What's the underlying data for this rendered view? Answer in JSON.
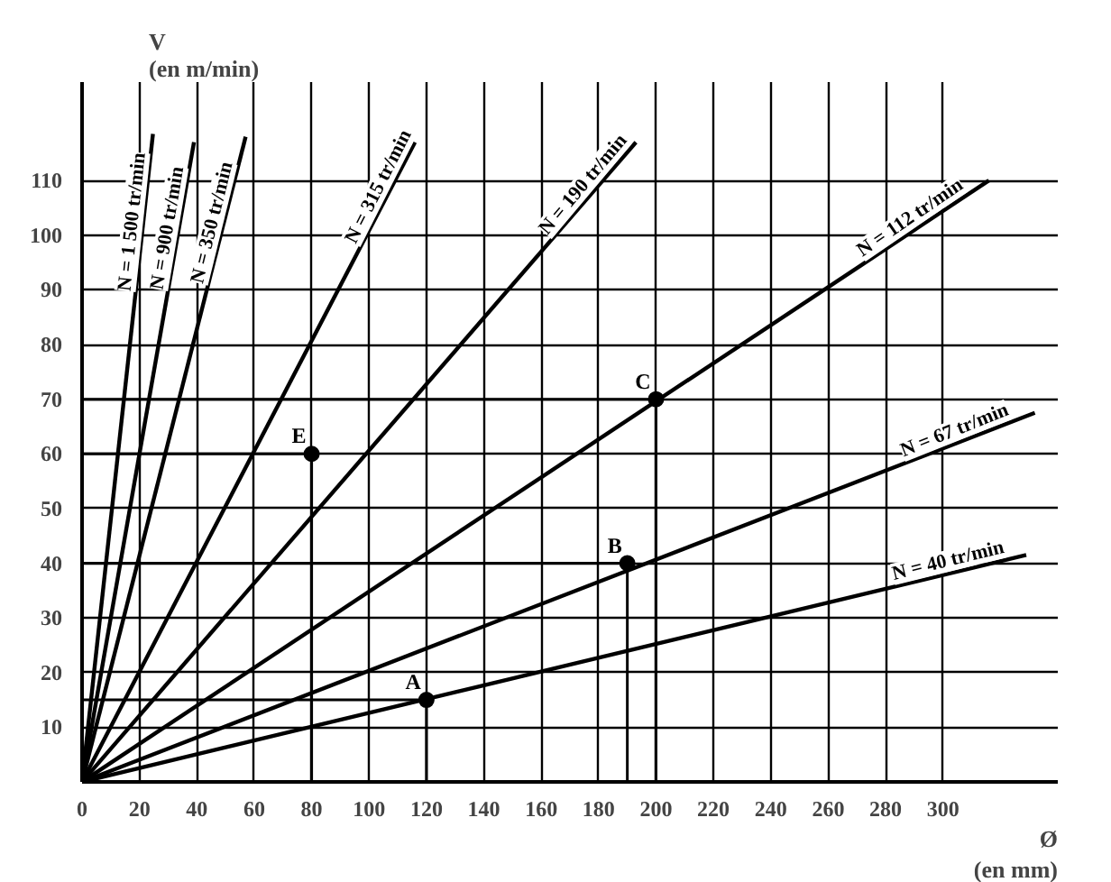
{
  "chart_data": {
    "type": "line",
    "xlabel": "Ø\n(en mm)",
    "ylabel": "V\n(en m/min)",
    "xlim": [
      0,
      340
    ],
    "ylim": [
      0,
      128
    ],
    "xticks": [
      0,
      20,
      40,
      60,
      80,
      100,
      120,
      140,
      160,
      180,
      200,
      220,
      240,
      260,
      280,
      300
    ],
    "yticks": [
      10,
      20,
      30,
      40,
      50,
      60,
      70,
      80,
      90,
      100,
      110
    ],
    "grid": true,
    "marker": "none",
    "line_style": "solid",
    "series": [
      {
        "name": "N = 1 500 tr/min",
        "color": "#000000",
        "x": [
          0,
          24.7
        ],
        "values": [
          0,
          118.5
        ]
      },
      {
        "name": "N = 900 tr/min",
        "color": "#000000",
        "x": [
          0,
          39
        ],
        "values": [
          0,
          117
        ]
      },
      {
        "name": "N = 350 tr/min",
        "color": "#000000",
        "x": [
          0,
          57
        ],
        "values": [
          0,
          118
        ]
      },
      {
        "name": "N = 315 tr/min",
        "color": "#000000",
        "x": [
          0,
          116
        ],
        "values": [
          0,
          117
        ]
      },
      {
        "name": "N = 190 tr/min",
        "color": "#000000",
        "x": [
          0,
          193
        ],
        "values": [
          0,
          117
        ]
      },
      {
        "name": "N = 112 tr/min",
        "color": "#000000",
        "x": [
          0,
          316
        ],
        "values": [
          0,
          110
        ]
      },
      {
        "name": "N = 67 tr/min",
        "color": "#000000",
        "x": [
          0,
          332
        ],
        "values": [
          0,
          67.5
        ]
      },
      {
        "name": "N = 40 tr/min",
        "color": "#000000",
        "x": [
          0,
          329
        ],
        "values": [
          0,
          41.5
        ]
      },
      {
        "type": "scatter",
        "marker": "circle",
        "color": "#000000",
        "x": [
          120,
          190,
          200,
          80
        ],
        "values": [
          15,
          40,
          70,
          60
        ]
      }
    ],
    "annotations": [
      {
        "text": "A",
        "x": 120,
        "y": 15
      },
      {
        "text": "B",
        "x": 190,
        "y": 40
      },
      {
        "text": "C",
        "x": 200,
        "y": 70
      },
      {
        "text": "E",
        "x": 80,
        "y": 60
      }
    ]
  }
}
